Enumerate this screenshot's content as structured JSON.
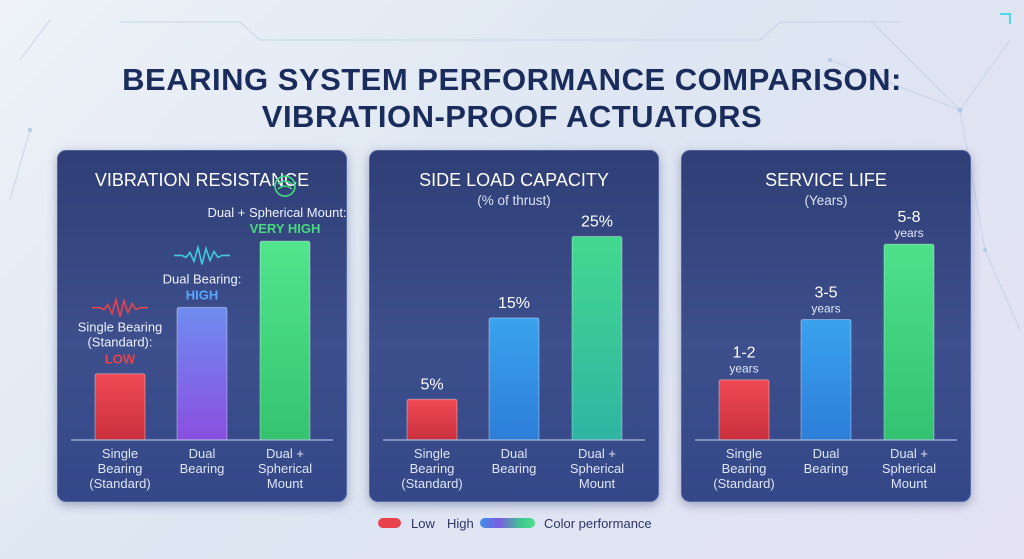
{
  "title": {
    "line1": "BEARING SYSTEM PERFORMANCE COMPARISON:",
    "line2": "VIBRATION-PROOF ACTUATORS"
  },
  "colors": {
    "low": "#e8434d",
    "mid": "#7a53e0",
    "high": "#46d97f",
    "side_mid": "#3a9be8",
    "side_high": "#35c98e"
  },
  "chart_data": [
    {
      "type": "bar",
      "title": "VIBRATION RESISTANCE",
      "subtitle": "",
      "categories": [
        "Single Bearing (Standard)",
        "Dual Bearing",
        "Dual + Spherical Mount"
      ],
      "category_lines": [
        [
          "Single",
          "Bearing",
          "(Standard)"
        ],
        [
          "Dual",
          "Bearing"
        ],
        [
          "Dual +",
          "Spherical",
          "Mount"
        ]
      ],
      "values": [
        1,
        2,
        3
      ],
      "ylim": [
        0,
        3.5
      ],
      "labels": [
        {
          "name": "Single Bearing",
          "name2": "(Standard):",
          "value": "LOW"
        },
        {
          "name": "Dual Bearing:",
          "value": "HIGH"
        },
        {
          "name": "Dual + Spherical Mount:",
          "value": "VERY HIGH"
        }
      ],
      "xlabel": "",
      "ylabel": ""
    },
    {
      "type": "bar",
      "title": "SIDE LOAD CAPACITY",
      "subtitle": "(% of thrust)",
      "categories": [
        "Single Bearing (Standard)",
        "Dual Bearing",
        "Dual + Spherical Mount"
      ],
      "category_lines": [
        [
          "Single",
          "Bearing",
          "(Standard)"
        ],
        [
          "Dual",
          "Bearing"
        ],
        [
          "Dual +",
          "Spherical",
          "Mount"
        ]
      ],
      "values": [
        5,
        15,
        25
      ],
      "unit": "%",
      "ylim": [
        0,
        28.5
      ],
      "value_labels": [
        "5%",
        "15%",
        "25%"
      ],
      "xlabel": "",
      "ylabel": "% of thrust"
    },
    {
      "type": "bar",
      "title": "SERVICE LIFE",
      "subtitle": "(Years)",
      "categories": [
        "Single Bearing (Standard)",
        "Dual Bearing",
        "Dual + Spherical Mount"
      ],
      "category_lines": [
        [
          "Single",
          "Bearing",
          "(Standard)"
        ],
        [
          "Dual",
          "Bearing"
        ],
        [
          "Dual +",
          "Spherical",
          "Mount"
        ]
      ],
      "ranges": [
        [
          1,
          2
        ],
        [
          3,
          5
        ],
        [
          5,
          8
        ]
      ],
      "values": [
        2,
        4,
        6.5
      ],
      "ylim": [
        0,
        7.7
      ],
      "value_labels": [
        "1-2",
        "3-5",
        "5-8"
      ],
      "unit_label": "years",
      "xlabel": "",
      "ylabel": "Years"
    }
  ],
  "legend": {
    "low": "Low",
    "high": "High",
    "description": "Color performance"
  }
}
